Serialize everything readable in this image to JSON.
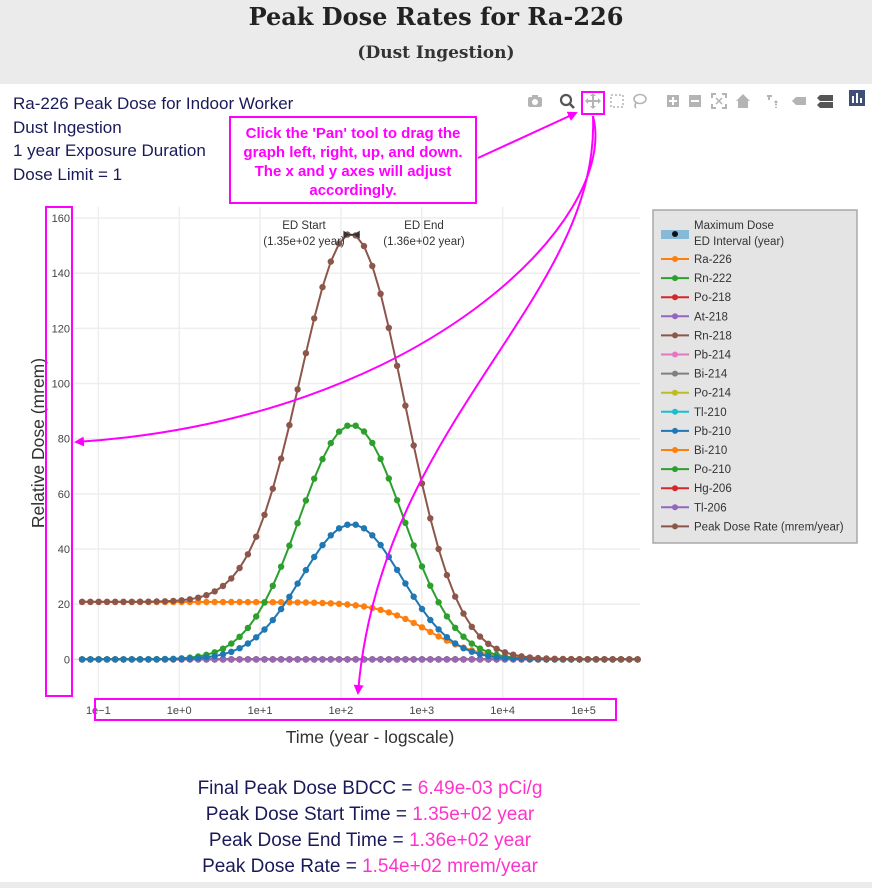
{
  "header": {
    "title": "Peak Dose Rates for Ra-226",
    "subtitle": "(Dust Ingestion)"
  },
  "chart_title_lines": [
    "Ra-226 Peak Dose for Indoor Worker",
    "Dust Ingestion",
    "1 year Exposure Duration",
    "Dose Limit = 1"
  ],
  "callout": {
    "text": "Click the 'Pan' tool to drag the graph left, right, up, and down. The x and y axes will adjust accordingly.",
    "color": "#ff00ff"
  },
  "toolbar": {
    "icons": [
      "camera-icon",
      "zoom-icon",
      "pan-icon",
      "box-select-icon",
      "lasso-icon",
      "zoom-in-icon",
      "zoom-out-icon",
      "autoscale-icon",
      "reset-axes-icon",
      "spike-lines-icon",
      "hover-closest-icon",
      "hover-compare-icon",
      "plotly-logo-icon"
    ]
  },
  "summary": [
    {
      "label": "Final Peak Dose BDCC = ",
      "value": "6.49e-03 pCi/g"
    },
    {
      "label": "Peak Dose Start Time = ",
      "value": "1.35e+02 year"
    },
    {
      "label": "Peak Dose End Time = ",
      "value": "1.36e+02 year"
    },
    {
      "label": "Peak Dose Rate = ",
      "value": "1.54e+02 mrem/year"
    }
  ],
  "chart_data": {
    "type": "line",
    "title": "Ra-226 Peak Dose for Indoor Worker",
    "xlabel": "Time (year - logscale)",
    "ylabel": "Relative Dose (mrem)",
    "x_scale": "log",
    "xlim": [
      0.05,
      500000
    ],
    "ylim": [
      -14,
      164
    ],
    "x_ticks": [
      {
        "value": 0.1,
        "label": "1e−1"
      },
      {
        "value": 1,
        "label": "1e+0"
      },
      {
        "value": 10,
        "label": "1e+1"
      },
      {
        "value": 100,
        "label": "1e+2"
      },
      {
        "value": 1000,
        "label": "1e+3"
      },
      {
        "value": 10000,
        "label": "1e+4"
      },
      {
        "value": 100000,
        "label": "1e+5"
      }
    ],
    "y_ticks": [
      0,
      20,
      40,
      60,
      80,
      100,
      120,
      140,
      160
    ],
    "grid": true,
    "legend_position": "right",
    "ed_interval": {
      "name": "Maximum Dose ED Interval (year)",
      "start": 135,
      "end": 136,
      "peak": 154,
      "start_label": "ED Start",
      "start_value_label": "(1.35e+02 year)",
      "end_label": "ED End",
      "end_value_label": "(1.36e+02 year)"
    },
    "peak_time": 135.5,
    "point_count": 68,
    "series": [
      {
        "name": "Ra-226",
        "color": "#ff7f0e",
        "kind": "decline",
        "plateau": 20.8,
        "halfpoint": 1200
      },
      {
        "name": "Rn-222",
        "color": "#2ca02c",
        "kind": "bell",
        "peak": 85,
        "sigma": 0.64
      },
      {
        "name": "Po-218",
        "color": "#d62728",
        "kind": "zero"
      },
      {
        "name": "At-218",
        "color": "#9467bd",
        "kind": "zero"
      },
      {
        "name": "Rn-218",
        "color": "#8c564b",
        "kind": "zero"
      },
      {
        "name": "Pb-214",
        "color": "#e377c2",
        "kind": "zero"
      },
      {
        "name": "Bi-214",
        "color": "#7f7f7f",
        "kind": "zero"
      },
      {
        "name": "Po-214",
        "color": "#bcbd22",
        "kind": "zero"
      },
      {
        "name": "Tl-210",
        "color": "#17becf",
        "kind": "zero"
      },
      {
        "name": "Pb-210",
        "color": "#1f77b4",
        "kind": "bell",
        "peak": 49,
        "sigma": 0.62
      },
      {
        "name": "Bi-210",
        "color": "#ff7f0e",
        "kind": "zero"
      },
      {
        "name": "Po-210",
        "color": "#2ca02c",
        "kind": "zero"
      },
      {
        "name": "Hg-206",
        "color": "#d62728",
        "kind": "zero"
      },
      {
        "name": "Tl-206",
        "color": "#9467bd",
        "kind": "zero"
      },
      {
        "name": "Peak Dose Rate (mrem/year)",
        "color": "#8c564b",
        "kind": "total"
      }
    ]
  }
}
